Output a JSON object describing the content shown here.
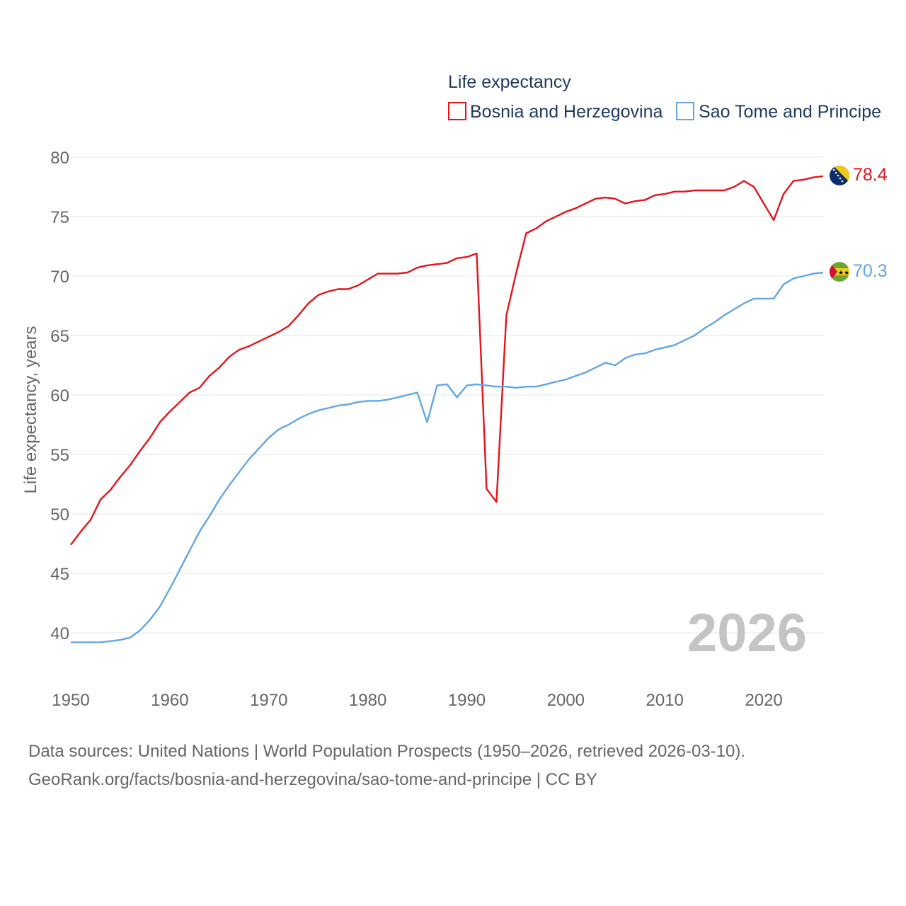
{
  "chart_data": {
    "type": "line",
    "legend_title": "Life expectancy",
    "ylabel": "Life expectancy, years",
    "xlim": [
      1950,
      2026
    ],
    "ylim": [
      37,
      81
    ],
    "yticks": [
      40,
      45,
      50,
      55,
      60,
      65,
      70,
      75,
      80
    ],
    "xticks": [
      1950,
      1960,
      1970,
      1980,
      1990,
      2000,
      2010,
      2020
    ],
    "grid": true,
    "legend_position": "top-right",
    "year_label": "2026",
    "x": [
      1950,
      1951,
      1952,
      1953,
      1954,
      1955,
      1956,
      1957,
      1958,
      1959,
      1960,
      1961,
      1962,
      1963,
      1964,
      1965,
      1966,
      1967,
      1968,
      1969,
      1970,
      1971,
      1972,
      1973,
      1974,
      1975,
      1976,
      1977,
      1978,
      1979,
      1980,
      1981,
      1982,
      1983,
      1984,
      1985,
      1986,
      1987,
      1988,
      1989,
      1990,
      1991,
      1992,
      1993,
      1994,
      1995,
      1996,
      1997,
      1998,
      1999,
      2000,
      2001,
      2002,
      2003,
      2004,
      2005,
      2006,
      2007,
      2008,
      2009,
      2010,
      2011,
      2012,
      2013,
      2014,
      2015,
      2016,
      2017,
      2018,
      2019,
      2020,
      2021,
      2022,
      2023,
      2024,
      2025,
      2026
    ],
    "series": [
      {
        "name": "Bosnia and Herzegovina",
        "color": "#e3141b",
        "end_label": "78.4",
        "flag": "bosnia-and-herzegovina-flag-icon",
        "values": [
          47.4,
          48.5,
          49.5,
          51.2,
          52.0,
          53.1,
          54.1,
          55.3,
          56.4,
          57.7,
          58.6,
          59.4,
          60.2,
          60.6,
          61.6,
          62.3,
          63.2,
          63.8,
          64.1,
          64.5,
          64.9,
          65.3,
          65.8,
          66.7,
          67.7,
          68.4,
          68.7,
          68.9,
          68.9,
          69.2,
          69.7,
          70.2,
          70.2,
          70.2,
          70.3,
          70.7,
          70.9,
          71.0,
          71.1,
          71.5,
          71.6,
          71.9,
          52.1,
          51.0,
          66.7,
          70.3,
          73.6,
          74.0,
          74.6,
          75.0,
          75.4,
          75.7,
          76.1,
          76.5,
          76.6,
          76.5,
          76.1,
          76.3,
          76.4,
          76.8,
          76.9,
          77.1,
          77.1,
          77.2,
          77.2,
          77.2,
          77.2,
          77.5,
          78.0,
          77.5,
          76.1,
          74.7,
          76.9,
          78.0,
          78.1,
          78.3,
          78.4
        ]
      },
      {
        "name": "Sao Tome and Principe",
        "color": "#62a6e4",
        "end_label": "70.3",
        "flag": "sao-tome-and-principe-flag-icon",
        "values": [
          39.2,
          39.2,
          39.2,
          39.2,
          39.3,
          39.4,
          39.6,
          40.2,
          41.1,
          42.2,
          43.7,
          45.3,
          46.9,
          48.5,
          49.8,
          51.2,
          52.4,
          53.5,
          54.6,
          55.5,
          56.4,
          57.1,
          57.5,
          58.0,
          58.4,
          58.7,
          58.9,
          59.1,
          59.2,
          59.4,
          59.5,
          59.5,
          59.6,
          59.8,
          60.0,
          60.2,
          57.7,
          60.8,
          60.9,
          59.8,
          60.8,
          60.9,
          60.8,
          60.7,
          60.7,
          60.6,
          60.7,
          60.7,
          60.9,
          61.1,
          61.3,
          61.6,
          61.9,
          62.3,
          62.7,
          62.5,
          63.1,
          63.4,
          63.5,
          63.8,
          64.0,
          64.2,
          64.6,
          65.0,
          65.6,
          66.1,
          66.7,
          67.2,
          67.7,
          68.1,
          68.1,
          68.1,
          69.3,
          69.8,
          70.0,
          70.2,
          70.3
        ]
      }
    ]
  },
  "footer": {
    "line1": "Data sources: United Nations | World Population Prospects (1950–2026, retrieved 2026-03-10).",
    "line2": "GeoRank.org/facts/bosnia-and-herzegovina/sao-tome-and-principe | CC BY"
  }
}
